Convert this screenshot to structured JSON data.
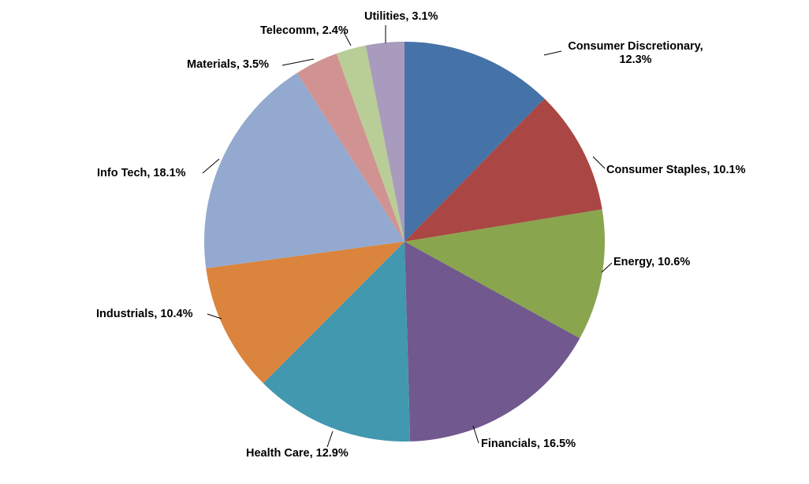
{
  "chart_data": {
    "type": "pie",
    "title": "",
    "start_angle_deg": 0,
    "direction": "clockwise",
    "slices": [
      {
        "name": "Consumer Discretionary",
        "value": 12.3,
        "label_lines": [
          "Consumer Discretionary,",
          "12.3%"
        ],
        "color": "#4572A7"
      },
      {
        "name": "Consumer Staples",
        "value": 10.1,
        "label_lines": [
          "Consumer Staples, 10.1%"
        ],
        "color": "#AA4643"
      },
      {
        "name": "Energy",
        "value": 10.6,
        "label_lines": [
          "Energy, 10.6%"
        ],
        "color": "#89A54E"
      },
      {
        "name": "Financials",
        "value": 16.5,
        "label_lines": [
          "Financials, 16.5%"
        ],
        "color": "#71588F"
      },
      {
        "name": "Health Care",
        "value": 12.9,
        "label_lines": [
          "Health Care, 12.9%"
        ],
        "color": "#4198AF"
      },
      {
        "name": "Industrials",
        "value": 10.4,
        "label_lines": [
          "Industrials, 10.4%"
        ],
        "color": "#DB843D"
      },
      {
        "name": "Info Tech",
        "value": 18.1,
        "label_lines": [
          "Info  Tech, 18.1%"
        ],
        "color": "#93A9CF"
      },
      {
        "name": "Materials",
        "value": 3.5,
        "label_lines": [
          "Materials, 3.5%"
        ],
        "color": "#D19392"
      },
      {
        "name": "Telecomm",
        "value": 2.4,
        "label_lines": [
          "Telecomm, 2.4%"
        ],
        "color": "#B9CD96"
      },
      {
        "name": "Utilities",
        "value": 3.1,
        "label_lines": [
          "Utilities,  3.1%"
        ],
        "color": "#A99BBD"
      }
    ]
  }
}
